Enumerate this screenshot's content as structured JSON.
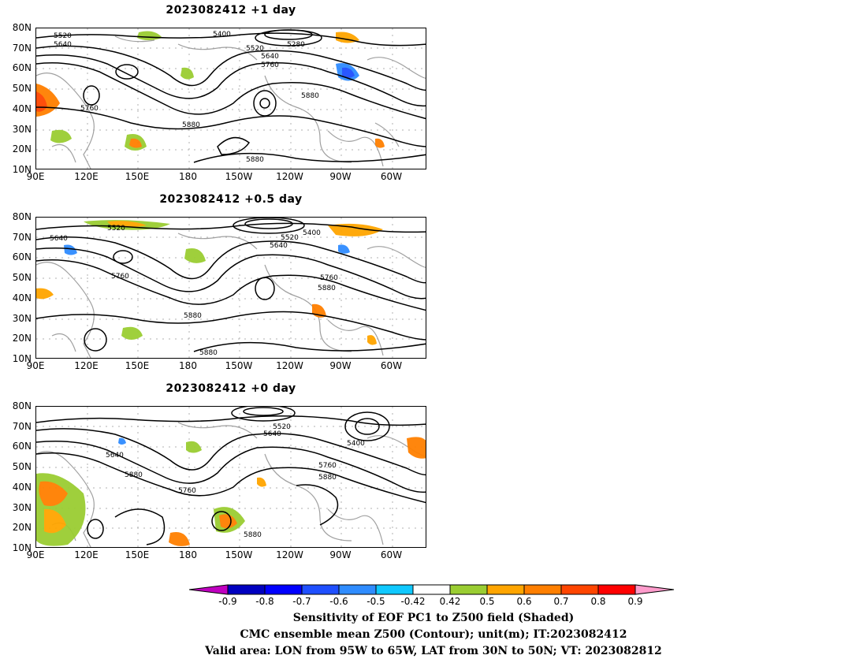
{
  "panels": [
    {
      "title": "2023082412  +1 day",
      "contour_labels": [
        "5400",
        "5520",
        "5640",
        "5280",
        "5520",
        "5640",
        "5760",
        "5880",
        "5760",
        "5880",
        "5880"
      ],
      "shading": "high-latitude blue negative patch near 85W/60N; orange-red positive patches near 90E/45N and 150E/20N"
    },
    {
      "title": "2023082412  +0.5 day",
      "contour_labels": [
        "5520",
        "5640",
        "5400",
        "5520",
        "5640",
        "5760",
        "5760",
        "5880",
        "5880",
        "5880"
      ],
      "shading": "small blue patches near 115E/65N and 85W/65N; green/orange patches scattered"
    },
    {
      "title": "2023082412  +0 day",
      "contour_labels": [
        "5520",
        "5640",
        "5400",
        "5640",
        "5880",
        "5760",
        "5760",
        "5880",
        "5880"
      ],
      "shading": "orange-red positive patches near 100E/40N, 60W/65N, 145W/20N"
    }
  ],
  "lat_labels": [
    "80N",
    "70N",
    "60N",
    "50N",
    "40N",
    "30N",
    "20N",
    "10N"
  ],
  "lon_labels": [
    "90E",
    "120E",
    "150E",
    "180",
    "150W",
    "120W",
    "90W",
    "60W"
  ],
  "colorbar": {
    "ticks": [
      "-0.9",
      "-0.8",
      "-0.7",
      "-0.6",
      "-0.5",
      "-0.42",
      "0.42",
      "0.5",
      "0.6",
      "0.7",
      "0.8",
      "0.9"
    ],
    "colors": [
      "#c000c0",
      "#0000c0",
      "#0000ff",
      "#1f4fff",
      "#2f8cff",
      "#10c8ff",
      "#ffffff",
      "#9acd32",
      "#ffa500",
      "#ff7f00",
      "#ff4500",
      "#ff0000",
      "#ff9ccc"
    ]
  },
  "captions": [
    "Sensitivity of EOF PC1 to Z500 field (Shaded)",
    "CMC ensemble mean Z500 (Contour); unit(m); IT:2023082412",
    "Valid area: LON from 95W to 65W, LAT from 30N to 50N; VT: 2023082812"
  ]
}
